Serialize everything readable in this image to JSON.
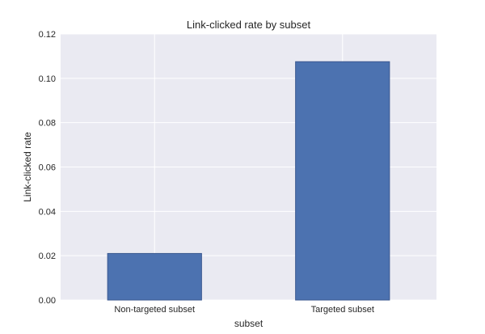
{
  "chart_data": {
    "type": "bar",
    "title": "Link-clicked rate by subset",
    "xlabel": "subset",
    "ylabel": "Link-clicked rate",
    "categories": [
      "Non-targeted subset",
      "Targeted subset"
    ],
    "values": [
      0.021,
      0.1075
    ],
    "ylim": [
      0,
      0.12
    ],
    "yticks": [
      "0.00",
      "0.02",
      "0.04",
      "0.06",
      "0.08",
      "0.10",
      "0.12"
    ],
    "grid": true,
    "legend": "none",
    "colors": {
      "bar": "#4c72b0",
      "bar_edge": "#3c5a91",
      "plot_background": "#eaeaf2",
      "grid": "#ffffff"
    }
  }
}
